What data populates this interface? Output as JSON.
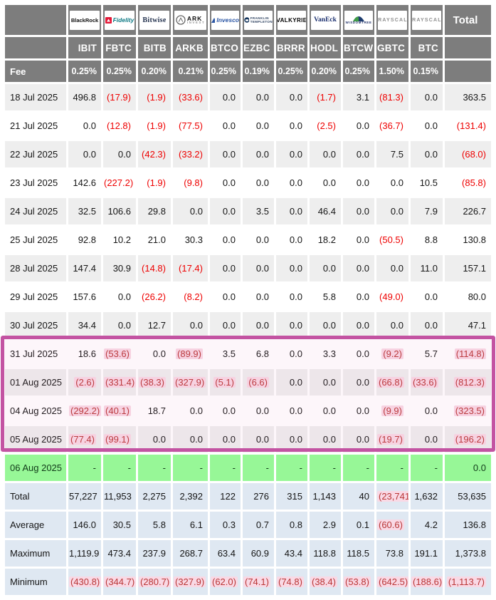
{
  "colors": {
    "header_bg": "#7d7d7d",
    "row_alt_bg": "#eeeeee",
    "row_bg": "#ffffff",
    "summary_bg": "#dfe8f2",
    "pending_bg": "#97f797",
    "negative_text": "#ee0000",
    "negative_highlight_bg": "#f9d9e5",
    "annotation_border": "#c353a2"
  },
  "annotation": {
    "highlighted_dates": [
      "31 Jul 2025",
      "01 Aug 2025",
      "04 Aug 2025",
      "05 Aug 2025"
    ]
  },
  "chart_data": {
    "type": "table",
    "total_label": "Total",
    "fee_label": "Fee",
    "columns": [
      {
        "provider": "BlackRock",
        "ticker": "IBIT",
        "fee": "0.25%"
      },
      {
        "provider": "Fidelity",
        "ticker": "FBTC",
        "fee": "0.25%"
      },
      {
        "provider": "Bitwise",
        "ticker": "BITB",
        "fee": "0.20%"
      },
      {
        "provider": "ARK INVEST",
        "ticker": "ARKB",
        "fee": "0.21%"
      },
      {
        "provider": "Invesco",
        "ticker": "BTCO",
        "fee": "0.25%"
      },
      {
        "provider": "FRANKLIN TEMPLETON",
        "ticker": "EZBC",
        "fee": "0.19%"
      },
      {
        "provider": "VALKYRIE",
        "ticker": "BRRR",
        "fee": "0.25%"
      },
      {
        "provider": "VanEck",
        "ticker": "HODL",
        "fee": "0.20%"
      },
      {
        "provider": "WISDOMTREE",
        "ticker": "BTCW",
        "fee": "0.25%"
      },
      {
        "provider": "GRAYSCALE",
        "ticker": "GBTC",
        "fee": "1.50%"
      },
      {
        "provider": "GRAYSCALE",
        "ticker": "BTC",
        "fee": "0.15%"
      }
    ],
    "rows": [
      {
        "date": "18 Jul 2025",
        "values": [
          "496.8",
          "(17.9)",
          "(1.9)",
          "(33.6)",
          "0.0",
          "0.0",
          "0.0",
          "(1.7)",
          "3.1",
          "(81.3)",
          "0.0"
        ],
        "total": "363.5"
      },
      {
        "date": "21 Jul 2025",
        "values": [
          "0.0",
          "(12.8)",
          "(1.9)",
          "(77.5)",
          "0.0",
          "0.0",
          "0.0",
          "(2.5)",
          "0.0",
          "(36.7)",
          "0.0"
        ],
        "total": "(131.4)"
      },
      {
        "date": "22 Jul 2025",
        "values": [
          "0.0",
          "0.0",
          "(42.3)",
          "(33.2)",
          "0.0",
          "0.0",
          "0.0",
          "0.0",
          "0.0",
          "7.5",
          "0.0"
        ],
        "total": "(68.0)"
      },
      {
        "date": "23 Jul 2025",
        "values": [
          "142.6",
          "(227.2)",
          "(1.9)",
          "(9.8)",
          "0.0",
          "0.0",
          "0.0",
          "0.0",
          "0.0",
          "0.0",
          "10.5"
        ],
        "total": "(85.8)"
      },
      {
        "date": "24 Jul 2025",
        "values": [
          "32.5",
          "106.6",
          "29.8",
          "0.0",
          "0.0",
          "3.5",
          "0.0",
          "46.4",
          "0.0",
          "0.0",
          "7.9"
        ],
        "total": "226.7"
      },
      {
        "date": "25 Jul 2025",
        "values": [
          "92.8",
          "10.2",
          "21.0",
          "30.3",
          "0.0",
          "0.0",
          "0.0",
          "18.2",
          "0.0",
          "(50.5)",
          "8.8"
        ],
        "total": "130.8"
      },
      {
        "date": "28 Jul 2025",
        "values": [
          "147.4",
          "30.9",
          "(14.8)",
          "(17.4)",
          "0.0",
          "0.0",
          "0.0",
          "0.0",
          "0.0",
          "0.0",
          "11.0"
        ],
        "total": "157.1"
      },
      {
        "date": "29 Jul 2025",
        "values": [
          "157.6",
          "0.0",
          "(26.2)",
          "(8.2)",
          "0.0",
          "0.0",
          "0.0",
          "5.8",
          "0.0",
          "(49.0)",
          "0.0"
        ],
        "total": "80.0"
      },
      {
        "date": "30 Jul 2025",
        "values": [
          "34.4",
          "0.0",
          "12.7",
          "0.0",
          "0.0",
          "0.0",
          "0.0",
          "0.0",
          "0.0",
          "0.0",
          "0.0"
        ],
        "total": "47.1"
      },
      {
        "date": "31 Jul 2025",
        "highlight": true,
        "values": [
          "18.6",
          "(53.6)",
          "0.0",
          "(89.9)",
          "3.5",
          "6.8",
          "0.0",
          "3.3",
          "0.0",
          "(9.2)",
          "5.7"
        ],
        "total": "(114.8)"
      },
      {
        "date": "01 Aug 2025",
        "highlight": true,
        "values": [
          "(2.6)",
          "(331.4)",
          "(38.3)",
          "(327.9)",
          "(5.1)",
          "(6.6)",
          "0.0",
          "0.0",
          "0.0",
          "(66.8)",
          "(33.6)"
        ],
        "total": "(812.3)"
      },
      {
        "date": "04 Aug 2025",
        "highlight": true,
        "values": [
          "(292.2)",
          "(40.1)",
          "18.7",
          "0.0",
          "0.0",
          "0.0",
          "0.0",
          "0.0",
          "0.0",
          "(9.9)",
          "0.0"
        ],
        "total": "(323.5)"
      },
      {
        "date": "05 Aug 2025",
        "highlight": true,
        "values": [
          "(77.4)",
          "(99.1)",
          "0.0",
          "0.0",
          "0.0",
          "0.0",
          "0.0",
          "0.0",
          "0.0",
          "(19.7)",
          "0.0"
        ],
        "total": "(196.2)"
      },
      {
        "date": "06 Aug 2025",
        "pending": true,
        "values": [
          "-",
          "-",
          "-",
          "-",
          "-",
          "-",
          "-",
          "-",
          "-",
          "-",
          "-"
        ],
        "total": "0.0"
      }
    ],
    "summary": [
      {
        "label": "Total",
        "values": [
          "57,227",
          "11,953",
          "2,275",
          "2,392",
          "122",
          "276",
          "315",
          "1,143",
          "40",
          "(23,741)",
          "1,632"
        ],
        "total": "53,635"
      },
      {
        "label": "Average",
        "values": [
          "146.0",
          "30.5",
          "5.8",
          "6.1",
          "0.3",
          "0.7",
          "0.8",
          "2.9",
          "0.1",
          "(60.6)",
          "4.2"
        ],
        "total": "136.8"
      },
      {
        "label": "Maximum",
        "values": [
          "1,119.9",
          "473.4",
          "237.9",
          "268.7",
          "63.4",
          "60.9",
          "43.4",
          "118.8",
          "118.5",
          "73.8",
          "191.1"
        ],
        "total": "1,373.8"
      },
      {
        "label": "Minimum",
        "values": [
          "(430.8)",
          "(344.7)",
          "(280.7)",
          "(327.9)",
          "(62.0)",
          "(74.1)",
          "(74.8)",
          "(38.4)",
          "(53.8)",
          "(642.5)",
          "(188.6)"
        ],
        "total": "(1,113.7)"
      }
    ]
  }
}
